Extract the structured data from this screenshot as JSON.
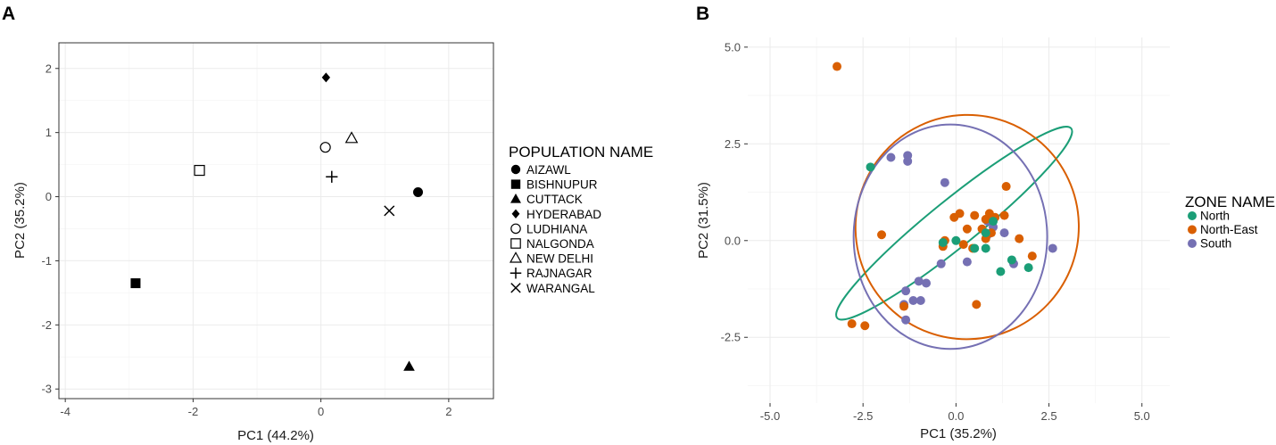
{
  "chart_data": [
    {
      "panel_label": "A",
      "type": "scatter",
      "xlabel": "PC1 (44.2%)",
      "ylabel": "PC2 (35.2%)",
      "xlim": [
        -4.1,
        2.7
      ],
      "ylim": [
        -3.15,
        2.4
      ],
      "xticks": [
        -4,
        -2,
        0,
        2
      ],
      "yticks": [
        2,
        1,
        0,
        -1,
        -2,
        -3
      ],
      "xtick_labels": [
        "-4",
        "-2",
        "0",
        "2"
      ],
      "ytick_labels": [
        "2",
        "1",
        "0",
        "-1",
        "-2",
        "-3"
      ],
      "grid": true,
      "legend_title": "POPULATION NAME",
      "points": [
        {
          "name": "AIZAWL",
          "marker": "circle-filled",
          "x": 1.52,
          "y": 0.07
        },
        {
          "name": "BISHNUPUR",
          "marker": "square-filled",
          "x": -2.9,
          "y": -1.35
        },
        {
          "name": "CUTTACK",
          "marker": "triangle-filled",
          "x": 1.38,
          "y": -2.65
        },
        {
          "name": "HYDERABAD",
          "marker": "diamond-filled",
          "x": 0.08,
          "y": 1.86
        },
        {
          "name": "LUDHIANA",
          "marker": "circle-open",
          "x": 0.07,
          "y": 0.77
        },
        {
          "name": "NALGONDA",
          "marker": "square-open",
          "x": -1.9,
          "y": 0.41
        },
        {
          "name": "NEW DELHI",
          "marker": "triangle-open",
          "x": 0.48,
          "y": 0.91
        },
        {
          "name": "RAJNAGAR",
          "marker": "plus",
          "x": 0.17,
          "y": 0.31
        },
        {
          "name": "WARANGAL",
          "marker": "x",
          "x": 1.07,
          "y": -0.22
        }
      ]
    },
    {
      "panel_label": "B",
      "type": "scatter",
      "xlabel": "PC1 (35.2%)",
      "ylabel": "PC2 (31.5%)",
      "xlim": [
        -5.6,
        5.75
      ],
      "ylim": [
        -4.2,
        5.25
      ],
      "xticks": [
        -5,
        -2.5,
        0,
        2.5,
        5
      ],
      "yticks": [
        5,
        2.5,
        0,
        -2.5
      ],
      "xtick_labels": [
        "-5.0",
        "-2.5",
        "0.0",
        "2.5",
        "5.0"
      ],
      "ytick_labels": [
        "5.0",
        "2.5",
        "0.0",
        "-2.5"
      ],
      "grid": true,
      "legend_title": "ZONE NAME",
      "colors": {
        "North": "#1b9e77",
        "North-East": "#d95f02",
        "South": "#7570b3"
      },
      "series": [
        {
          "name": "North",
          "points": [
            [
              -2.3,
              1.9
            ],
            [
              0.0,
              0.0
            ],
            [
              0.8,
              0.2
            ],
            [
              1.0,
              0.5
            ],
            [
              0.5,
              -0.2
            ],
            [
              0.8,
              -0.2
            ],
            [
              1.5,
              -0.5
            ],
            [
              1.95,
              -0.7
            ],
            [
              1.2,
              -0.8
            ],
            [
              -0.35,
              -0.05
            ]
          ],
          "ellipse": {
            "cx": -0.05,
            "cy": 0.45,
            "rx": 4.05,
            "ry": 0.6,
            "angle_deg": -39
          }
        },
        {
          "name": "North-East",
          "points": [
            [
              -3.2,
              4.5
            ],
            [
              -2.0,
              0.15
            ],
            [
              -2.8,
              -2.15
            ],
            [
              -2.45,
              -2.2
            ],
            [
              -0.3,
              0.0
            ],
            [
              -0.35,
              -0.15
            ],
            [
              -0.05,
              0.6
            ],
            [
              0.1,
              0.7
            ],
            [
              0.3,
              0.3
            ],
            [
              0.5,
              0.65
            ],
            [
              0.8,
              0.55
            ],
            [
              0.9,
              0.7
            ],
            [
              1.05,
              0.6
            ],
            [
              1.3,
              0.65
            ],
            [
              1.35,
              1.4
            ],
            [
              0.7,
              0.3
            ],
            [
              0.8,
              0.05
            ],
            [
              0.2,
              -0.1
            ],
            [
              0.55,
              -1.65
            ],
            [
              1.7,
              0.05
            ],
            [
              2.05,
              -0.4
            ],
            [
              -1.4,
              -1.7
            ],
            [
              0.45,
              -0.2
            ],
            [
              0.95,
              0.2
            ]
          ],
          "ellipse": {
            "cx": 0.3,
            "cy": 0.35,
            "rx": 3.0,
            "ry": 2.9,
            "angle_deg": 20
          }
        },
        {
          "name": "South",
          "points": [
            [
              -1.75,
              2.15
            ],
            [
              -1.3,
              2.05
            ],
            [
              -1.3,
              2.2
            ],
            [
              -0.3,
              1.5
            ],
            [
              0.85,
              0.5
            ],
            [
              0.95,
              0.6
            ],
            [
              1.0,
              0.35
            ],
            [
              0.85,
              0.15
            ],
            [
              1.3,
              0.2
            ],
            [
              2.6,
              -0.2
            ],
            [
              -0.4,
              -0.6
            ],
            [
              0.3,
              -0.55
            ],
            [
              -0.8,
              -1.1
            ],
            [
              -1.0,
              -1.05
            ],
            [
              -1.35,
              -1.3
            ],
            [
              -1.15,
              -1.55
            ],
            [
              -0.95,
              -1.55
            ],
            [
              -1.4,
              -1.65
            ],
            [
              -1.35,
              -2.05
            ],
            [
              1.55,
              -0.6
            ]
          ],
          "ellipse": {
            "cx": -0.15,
            "cy": 0.1,
            "rx": 3.02,
            "ry": 2.5,
            "angle_deg": 90
          }
        }
      ]
    }
  ]
}
